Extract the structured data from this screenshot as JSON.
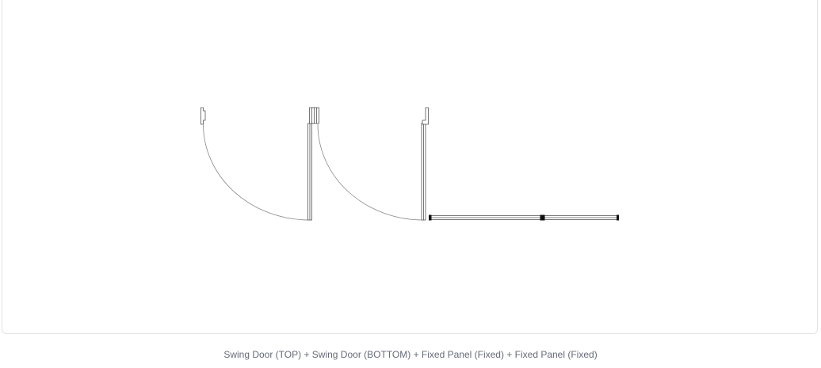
{
  "caption": "Swing Door (TOP) + Swing Door (BOTTOM) + Fixed Panel (Fixed) + Fixed Panel (Fixed)",
  "colors": {
    "line": "#555555",
    "arc": "#888888",
    "post": "#111111",
    "frame_border": "#e3e3e6",
    "caption": "#666b77"
  },
  "components": [
    {
      "type": "swing-door",
      "hinge": "TOP"
    },
    {
      "type": "swing-door",
      "hinge": "BOTTOM"
    },
    {
      "type": "fixed-panel",
      "mode": "Fixed"
    },
    {
      "type": "fixed-panel",
      "mode": "Fixed"
    }
  ]
}
